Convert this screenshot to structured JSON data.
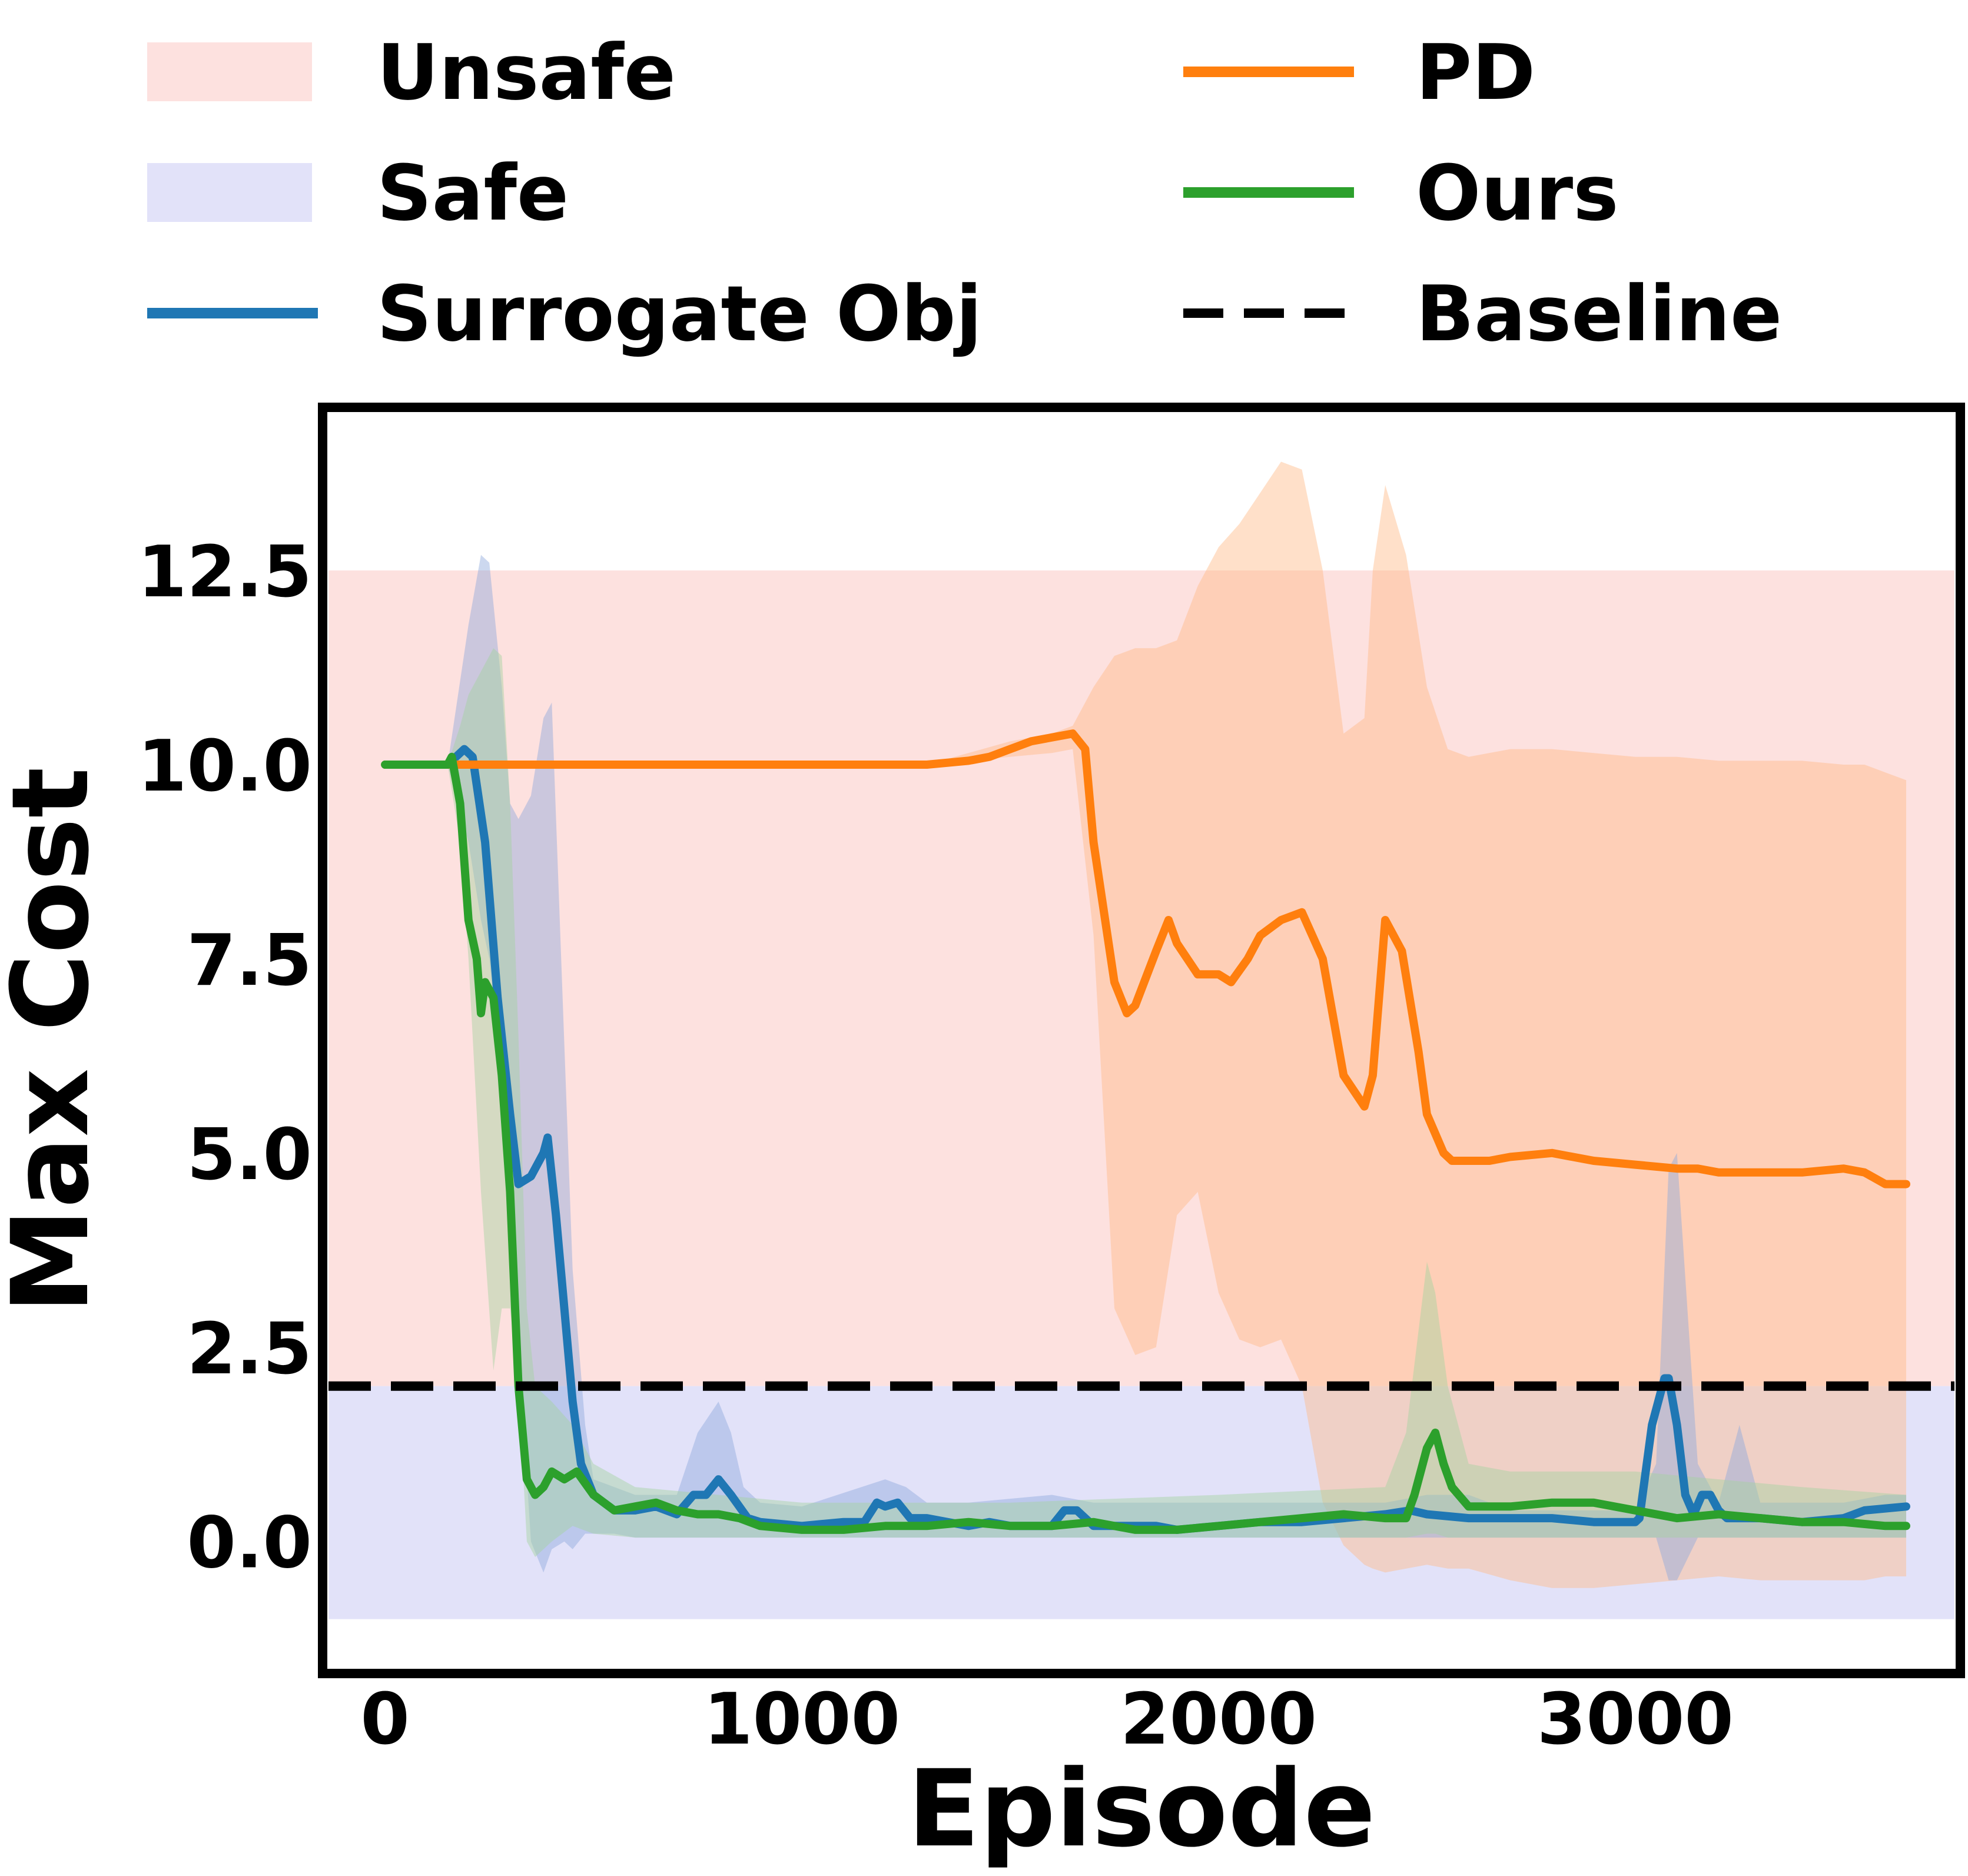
{
  "chart_data": {
    "type": "line",
    "xlabel": "Episode",
    "ylabel": "Max Cost",
    "xlim": [
      -150,
      3780
    ],
    "ylim": [
      -1.7,
      14.6
    ],
    "xticks": [
      "0",
      "1000",
      "2000",
      "3000"
    ],
    "xtick_values": [
      0,
      1000,
      2000,
      3000
    ],
    "yticks": [
      "0.0",
      "2.5",
      "5.0",
      "7.5",
      "10.0",
      "12.5"
    ],
    "ytick_values": [
      0.0,
      2.5,
      5.0,
      7.5,
      10.0,
      12.5
    ],
    "grid": false,
    "legend_position": "top",
    "regions": [
      {
        "name": "Unsafe",
        "from": 2.0,
        "to": 12.5,
        "color": "#fde1df"
      },
      {
        "name": "Safe",
        "from": -1.0,
        "to": 2.0,
        "color": "#e2e2f9"
      }
    ],
    "baseline": {
      "name": "Baseline",
      "value": 2.0,
      "color": "#000000"
    },
    "series": [
      {
        "name": "Surrogate Obj",
        "color": "#1f77b4",
        "x": [
          0,
          150,
          170,
          190,
          210,
          240,
          270,
          300,
          320,
          350,
          380,
          390,
          410,
          430,
          450,
          470,
          500,
          550,
          600,
          650,
          700,
          740,
          770,
          800,
          830,
          870,
          900,
          1000,
          1100,
          1150,
          1180,
          1200,
          1230,
          1260,
          1300,
          1350,
          1400,
          1450,
          1500,
          1550,
          1600,
          1630,
          1660,
          1700,
          1800,
          1850,
          1900,
          2000,
          2100,
          2200,
          2300,
          2400,
          2460,
          2500,
          2600,
          2700,
          2800,
          2900,
          3000,
          3010,
          3040,
          3070,
          3080,
          3100,
          3120,
          3140,
          3160,
          3180,
          3200,
          3220,
          3250,
          3300,
          3400,
          3500,
          3550,
          3650
        ],
        "y": [
          10.0,
          10.0,
          10.1,
          10.2,
          10.1,
          9.0,
          7.0,
          5.5,
          4.6,
          4.7,
          5.0,
          5.2,
          4.2,
          3.0,
          1.8,
          1.0,
          0.6,
          0.4,
          0.4,
          0.45,
          0.35,
          0.6,
          0.6,
          0.8,
          0.6,
          0.3,
          0.25,
          0.2,
          0.25,
          0.25,
          0.5,
          0.45,
          0.5,
          0.3,
          0.3,
          0.25,
          0.2,
          0.25,
          0.2,
          0.2,
          0.2,
          0.4,
          0.4,
          0.2,
          0.2,
          0.2,
          0.15,
          0.2,
          0.25,
          0.25,
          0.3,
          0.35,
          0.4,
          0.35,
          0.3,
          0.3,
          0.3,
          0.25,
          0.25,
          0.3,
          1.5,
          2.1,
          2.1,
          1.5,
          0.6,
          0.35,
          0.6,
          0.6,
          0.4,
          0.3,
          0.3,
          0.3,
          0.25,
          0.3,
          0.4,
          0.45
        ]
      },
      {
        "name": "PD",
        "color": "#ff7f0e",
        "x": [
          0,
          1300,
          1400,
          1450,
          1500,
          1550,
          1600,
          1650,
          1680,
          1700,
          1750,
          1780,
          1800,
          1850,
          1880,
          1900,
          1950,
          2000,
          2030,
          2070,
          2100,
          2150,
          2200,
          2250,
          2300,
          2350,
          2370,
          2400,
          2440,
          2480,
          2500,
          2540,
          2560,
          2580,
          2600,
          2650,
          2700,
          2800,
          2900,
          3000,
          3100,
          3150,
          3200,
          3300,
          3400,
          3500,
          3550,
          3600,
          3650
        ],
        "y": [
          10.0,
          10.0,
          10.05,
          10.1,
          10.2,
          10.3,
          10.35,
          10.4,
          10.2,
          9.0,
          7.2,
          6.8,
          6.9,
          7.6,
          8.0,
          7.7,
          7.3,
          7.3,
          7.2,
          7.5,
          7.8,
          8.0,
          8.1,
          7.5,
          6.0,
          5.6,
          6.0,
          8.0,
          7.6,
          6.3,
          5.5,
          5.0,
          4.9,
          4.9,
          4.9,
          4.9,
          4.95,
          5.0,
          4.9,
          4.85,
          4.8,
          4.8,
          4.75,
          4.75,
          4.75,
          4.8,
          4.75,
          4.6,
          4.6
        ]
      },
      {
        "name": "Ours",
        "color": "#2ca02c",
        "x": [
          0,
          150,
          160,
          180,
          200,
          220,
          230,
          240,
          260,
          280,
          300,
          320,
          340,
          360,
          380,
          400,
          430,
          460,
          500,
          550,
          600,
          650,
          700,
          750,
          800,
          850,
          900,
          1000,
          1100,
          1200,
          1300,
          1400,
          1500,
          1600,
          1700,
          1800,
          1900,
          2000,
          2100,
          2200,
          2300,
          2400,
          2450,
          2470,
          2500,
          2520,
          2540,
          2560,
          2600,
          2700,
          2800,
          2900,
          3000,
          3100,
          3200,
          3300,
          3400,
          3500,
          3600,
          3650
        ],
        "y": [
          10.0,
          10.0,
          10.1,
          9.5,
          8.0,
          7.5,
          6.8,
          7.2,
          7.0,
          6.0,
          4.5,
          2.0,
          0.8,
          0.6,
          0.7,
          0.9,
          0.8,
          0.9,
          0.6,
          0.4,
          0.45,
          0.5,
          0.4,
          0.35,
          0.35,
          0.3,
          0.2,
          0.15,
          0.15,
          0.2,
          0.2,
          0.25,
          0.2,
          0.2,
          0.25,
          0.15,
          0.15,
          0.2,
          0.25,
          0.3,
          0.35,
          0.3,
          0.3,
          0.6,
          1.2,
          1.4,
          1.0,
          0.7,
          0.45,
          0.45,
          0.5,
          0.5,
          0.4,
          0.3,
          0.35,
          0.3,
          0.25,
          0.25,
          0.2,
          0.2
        ]
      }
    ],
    "bands": [
      {
        "name": "PD",
        "color": "#ffbb88",
        "x": [
          0,
          1300,
          1500,
          1600,
          1650,
          1700,
          1750,
          1800,
          1850,
          1900,
          1950,
          2000,
          2050,
          2100,
          2150,
          2200,
          2250,
          2300,
          2350,
          2370,
          2400,
          2450,
          2500,
          2550,
          2600,
          2700,
          2800,
          2900,
          3000,
          3100,
          3200,
          3300,
          3400,
          3500,
          3550,
          3600,
          3650
        ],
        "upper": [
          10.0,
          10.0,
          10.3,
          10.4,
          10.5,
          11.0,
          11.4,
          11.5,
          11.5,
          11.6,
          12.3,
          12.8,
          13.1,
          13.5,
          13.9,
          13.8,
          12.5,
          10.4,
          10.6,
          12.5,
          13.6,
          12.7,
          11.0,
          10.2,
          10.1,
          10.2,
          10.2,
          10.15,
          10.1,
          10.1,
          10.05,
          10.05,
          10.05,
          10.0,
          10.0,
          9.9,
          9.8
        ],
        "lower": [
          10.0,
          10.0,
          10.1,
          10.15,
          10.2,
          7.8,
          3.0,
          2.4,
          2.5,
          4.2,
          4.5,
          3.2,
          2.6,
          2.5,
          2.6,
          2.0,
          0.5,
          -0.05,
          -0.3,
          -0.35,
          -0.4,
          -0.35,
          -0.3,
          -0.35,
          -0.35,
          -0.5,
          -0.6,
          -0.6,
          -0.55,
          -0.5,
          -0.45,
          -0.5,
          -0.5,
          -0.5,
          -0.5,
          -0.45,
          -0.45
        ]
      },
      {
        "name": "Surrogate Obj",
        "color": "#8ea9dc",
        "x": [
          0,
          150,
          200,
          230,
          250,
          280,
          300,
          320,
          350,
          380,
          400,
          430,
          450,
          480,
          500,
          550,
          600,
          700,
          750,
          800,
          830,
          860,
          900,
          1000,
          1200,
          1250,
          1300,
          1400,
          1600,
          1700,
          2000,
          2400,
          2500,
          2600,
          2700,
          3000,
          3050,
          3080,
          3100,
          3150,
          3200,
          3250,
          3300,
          3400,
          3500,
          3600,
          3650
        ],
        "upper": [
          10.0,
          10.0,
          11.8,
          12.7,
          12.6,
          11.0,
          9.5,
          9.3,
          9.6,
          10.6,
          10.8,
          6.4,
          3.5,
          1.5,
          0.8,
          0.7,
          0.6,
          0.6,
          1.4,
          1.8,
          1.4,
          0.7,
          0.5,
          0.45,
          0.8,
          0.7,
          0.5,
          0.5,
          0.6,
          0.5,
          0.5,
          0.5,
          0.6,
          0.6,
          0.4,
          0.4,
          1.0,
          4.8,
          5.0,
          1.0,
          0.5,
          1.5,
          0.5,
          0.5,
          0.5,
          0.6,
          0.6
        ],
        "lower": [
          10.0,
          10.0,
          9.0,
          8.0,
          7.5,
          6.0,
          4.5,
          2.5,
          0.0,
          -0.4,
          -0.1,
          0.0,
          -0.1,
          0.1,
          0.1,
          0.1,
          0.05,
          0.05,
          0.05,
          0.05,
          0.05,
          0.05,
          0.05,
          0.05,
          0.05,
          0.05,
          0.05,
          0.05,
          0.05,
          0.05,
          0.05,
          0.05,
          0.05,
          0.05,
          0.05,
          0.05,
          0.05,
          -0.5,
          -0.5,
          0.05,
          0.05,
          0.05,
          0.05,
          0.05,
          0.05,
          0.05,
          0.05
        ]
      },
      {
        "name": "Ours",
        "color": "#a5d2a0",
        "x": [
          0,
          150,
          180,
          200,
          230,
          260,
          280,
          300,
          320,
          340,
          360,
          400,
          450,
          500,
          600,
          800,
          1000,
          1500,
          2000,
          2400,
          2450,
          2500,
          2520,
          2550,
          2600,
          2700,
          3000,
          3200,
          3400,
          3650
        ],
        "upper": [
          10.0,
          10.0,
          10.5,
          10.9,
          11.2,
          11.5,
          11.4,
          9.5,
          6.5,
          3.0,
          2.0,
          1.8,
          1.5,
          1.0,
          0.7,
          0.6,
          0.5,
          0.5,
          0.6,
          0.7,
          1.4,
          3.6,
          3.2,
          2.0,
          1.0,
          0.9,
          0.9,
          0.8,
          0.7,
          0.6
        ],
        "lower": [
          10.0,
          10.0,
          9.0,
          7.5,
          4.5,
          2.2,
          3.0,
          3.0,
          2.0,
          0.0,
          -0.2,
          0.0,
          0.2,
          0.1,
          0.05,
          0.05,
          0.05,
          0.05,
          0.05,
          0.05,
          0.05,
          0.1,
          0.1,
          0.05,
          0.05,
          0.05,
          0.05,
          0.05,
          0.05,
          0.05
        ]
      }
    ]
  }
}
